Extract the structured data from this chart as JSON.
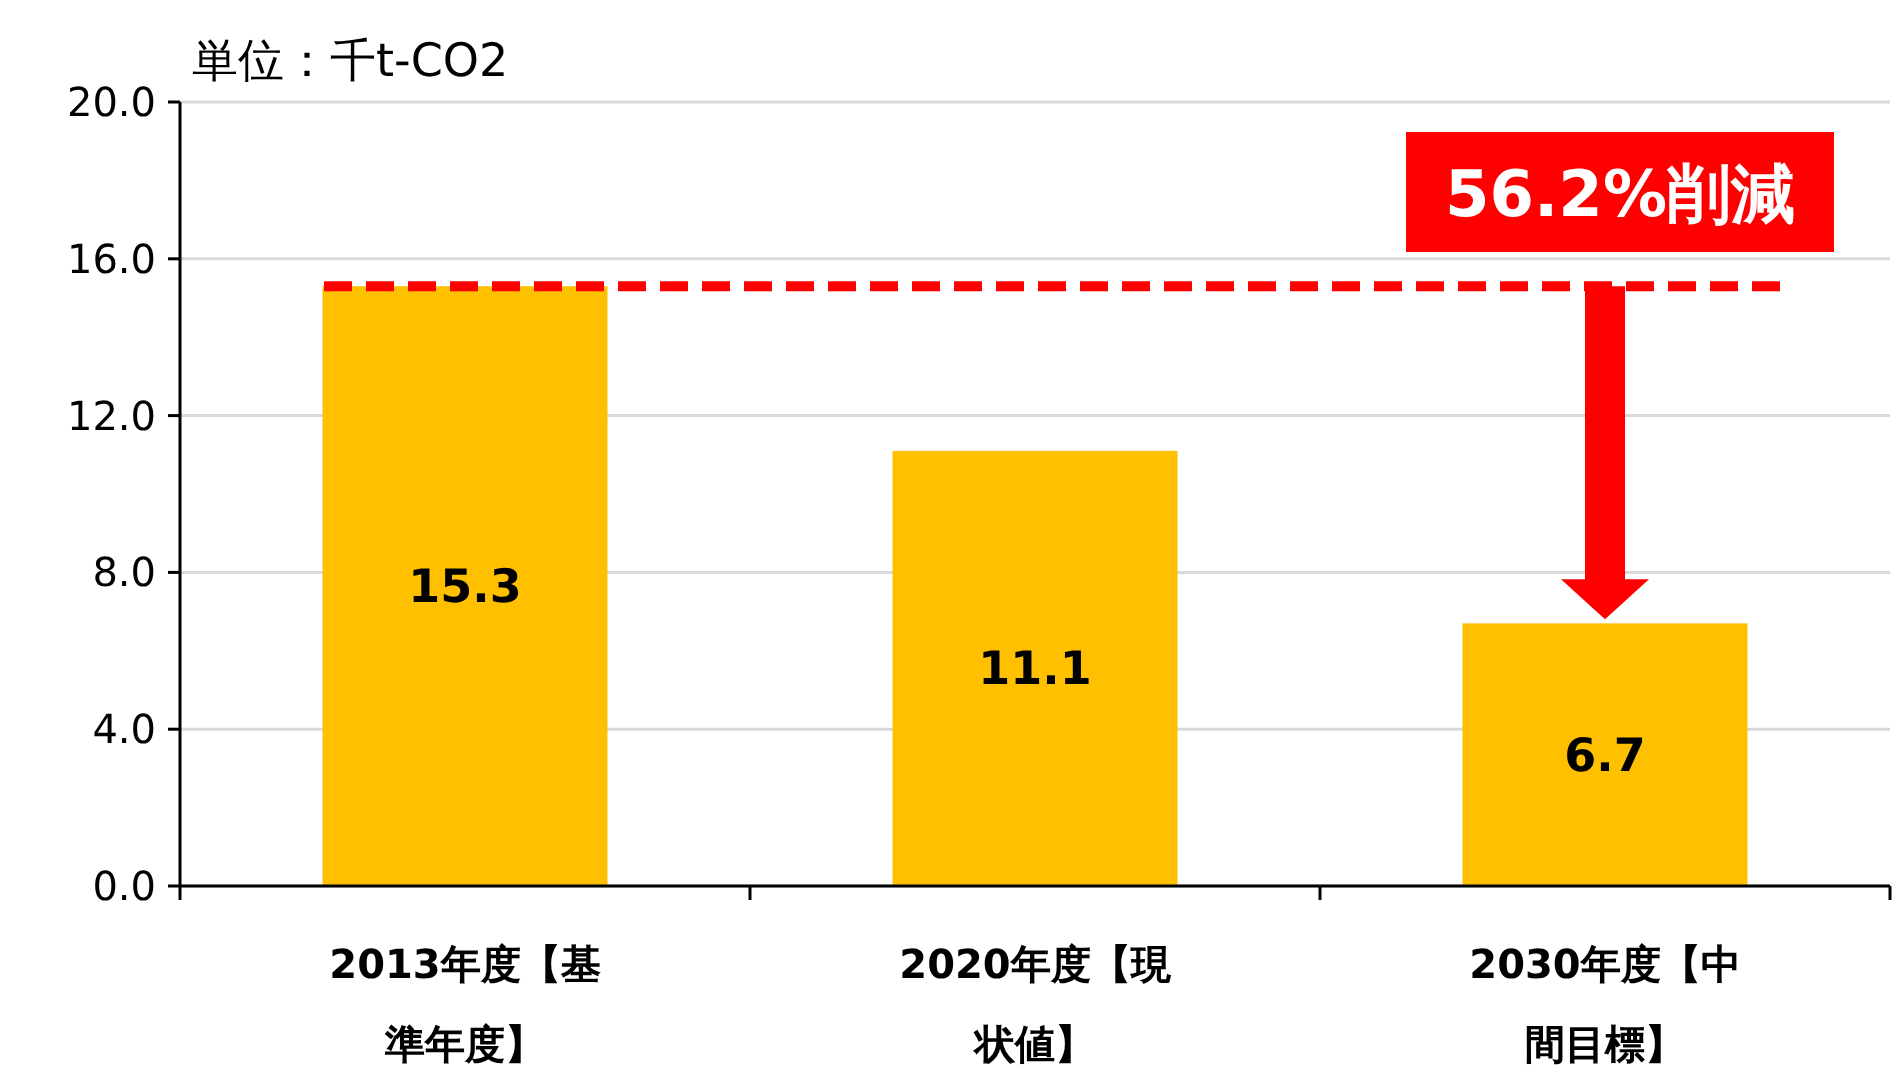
{
  "chart_data": {
    "type": "bar",
    "ylabel": "単位：千t-CO2",
    "categories": [
      "2013年度【基準年度】",
      "2020年度【現状値】",
      "2030年度【中間目標】"
    ],
    "values": [
      15.3,
      11.1,
      6.7
    ],
    "color": "#ffc000",
    "data_labels": true,
    "ylim": [
      0,
      20
    ],
    "yticks": [
      {
        "value": 0,
        "label": "0.0"
      },
      {
        "value": 4,
        "label": "4.0"
      },
      {
        "value": 8,
        "label": "8.0"
      },
      {
        "value": 12,
        "label": "12.0"
      },
      {
        "value": 16,
        "label": "16.0"
      },
      {
        "value": 20,
        "label": "20.0"
      }
    ],
    "grid": "y",
    "ref_lines": [
      {
        "axis": "y",
        "value": 15.3,
        "color": "#ff0000",
        "line_style": "dashed"
      }
    ],
    "annotations": [
      "56.2%削減"
    ]
  }
}
